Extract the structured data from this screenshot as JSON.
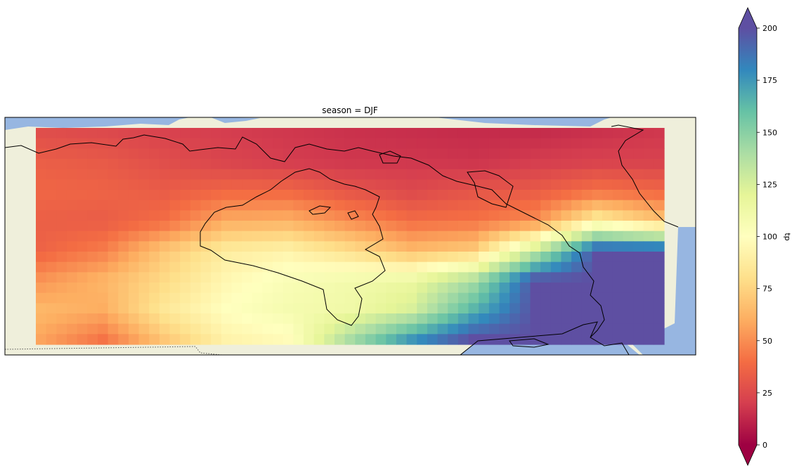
{
  "title": "season = DJF",
  "colorbar": {
    "label": "tp",
    "ticks": [
      "0",
      "25",
      "50",
      "75",
      "100",
      "125",
      "150",
      "175",
      "200"
    ],
    "tick_values": [
      0,
      25,
      50,
      75,
      100,
      125,
      150,
      175,
      200
    ],
    "range": [
      0,
      200
    ],
    "extend": "both",
    "colormap": "Spectral"
  },
  "colors": {
    "land": "#efefdb",
    "ocean": "#97b6e1",
    "coastline": "#000000"
  },
  "chart_data": {
    "type": "heatmap",
    "title": "season = DJF",
    "variable": "tp",
    "value_range": [
      0,
      200
    ],
    "grid": {
      "rows": 21,
      "cols": 61
    },
    "anchors": [
      [
        27,
        25,
        22,
        20,
        18,
        16,
        15,
        14,
        14,
        16,
        18
      ],
      [
        34,
        32,
        27,
        23,
        20,
        18,
        18,
        17,
        20,
        22,
        22
      ],
      [
        37,
        36,
        33,
        38,
        38,
        30,
        25,
        30,
        33,
        42,
        38
      ],
      [
        34,
        33,
        40,
        60,
        62,
        50,
        40,
        42,
        50,
        90,
        70
      ],
      [
        36,
        45,
        70,
        88,
        92,
        80,
        65,
        72,
        130,
        200,
        200
      ],
      [
        52,
        63,
        78,
        95,
        105,
        110,
        115,
        140,
        200,
        200,
        200
      ],
      [
        64,
        60,
        85,
        100,
        108,
        112,
        125,
        165,
        200,
        200,
        200
      ],
      [
        57,
        42,
        70,
        92,
        98,
        140,
        175,
        200,
        200,
        200,
        200
      ]
    ]
  }
}
